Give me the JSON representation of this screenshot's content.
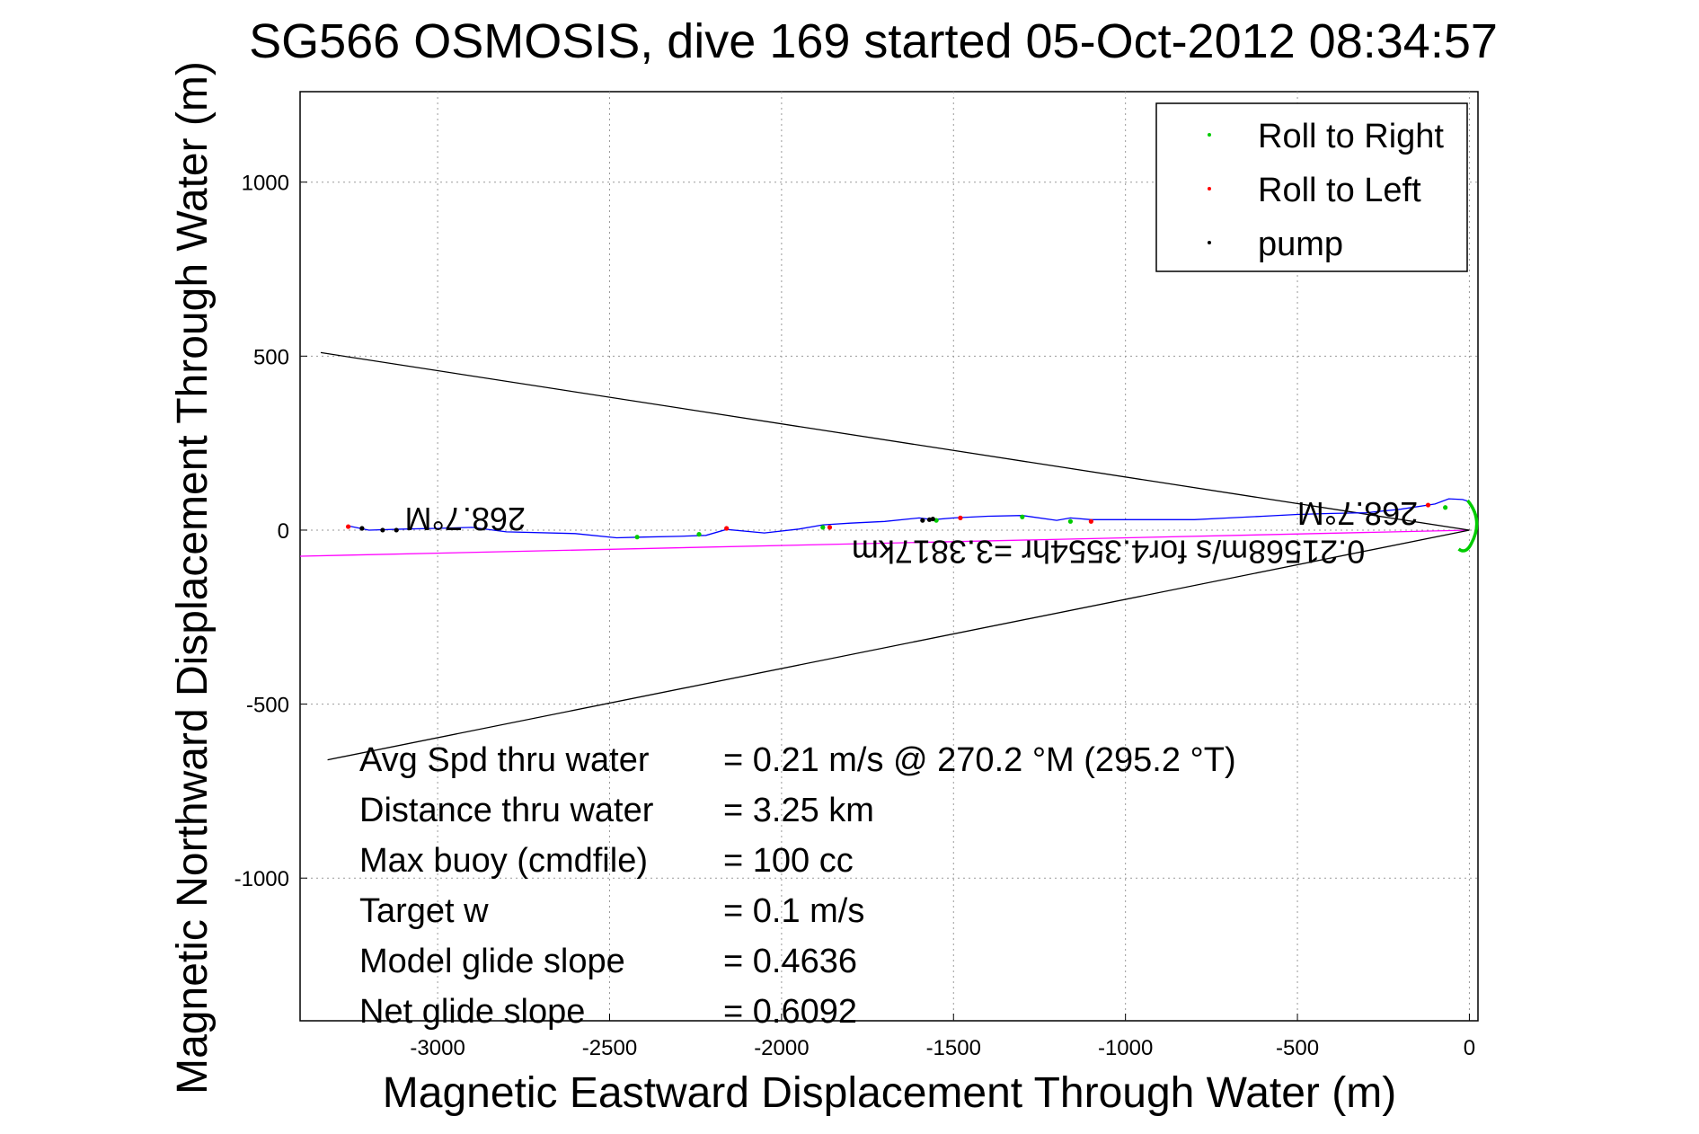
{
  "chart_data": {
    "type": "line",
    "title": "SG566 OSMOSIS, dive 169 started 05-Oct-2012 08:34:57",
    "xlabel": "Magnetic Eastward Displacement Through Water (m)",
    "ylabel": "Magnetic Northward Displacement Through Water (m)",
    "xlim": [
      -3400,
      25
    ],
    "ylim": [
      -1410,
      1260
    ],
    "xticks": [
      -3000,
      -2500,
      -2000,
      -1500,
      -1000,
      -500,
      0
    ],
    "yticks": [
      -1000,
      -500,
      0,
      500,
      1000
    ],
    "xtick_labels": [
      "-3000",
      "-2500",
      "-2000",
      "-1500",
      "-1000",
      "-500",
      "0"
    ],
    "ytick_labels": [
      "-1000",
      "-500",
      "0",
      "500",
      "1000"
    ],
    "grid": true,
    "legend_position": "top-right",
    "legend": [
      {
        "label": "Roll to Right",
        "color": "#00cc00"
      },
      {
        "label": "Roll to Left",
        "color": "#ff0000"
      },
      {
        "label": "pump",
        "color": "#000000"
      }
    ],
    "series": [
      {
        "name": "track",
        "color": "#0000ff",
        "x": [
          0,
          -20,
          -60,
          -100,
          -200,
          -300,
          -400,
          -500,
          -600,
          -700,
          -800,
          -900,
          -1000,
          -1100,
          -1160,
          -1200,
          -1300,
          -1400,
          -1500,
          -1560,
          -1600,
          -1700,
          -1800,
          -1880,
          -1950,
          -2050,
          -2160,
          -2220,
          -2300,
          -2400,
          -2480,
          -2600,
          -2800,
          -2900,
          -3000,
          -3100,
          -3200,
          -3260
        ],
        "y": [
          82,
          88,
          90,
          75,
          60,
          50,
          48,
          45,
          40,
          35,
          30,
          30,
          30,
          30,
          35,
          28,
          42,
          40,
          35,
          30,
          35,
          25,
          20,
          15,
          3,
          -8,
          2,
          -15,
          -18,
          -20,
          -22,
          -10,
          -5,
          8,
          5,
          3,
          0,
          12
        ]
      },
      {
        "name": "roll to right",
        "color": "#00cc00",
        "x": [
          -70,
          -1160,
          -1300,
          -1550,
          -1880,
          -2240,
          -2420
        ],
        "y": [
          65,
          25,
          38,
          28,
          8,
          -12,
          -20
        ]
      },
      {
        "name": "roll to left",
        "color": "#ff0000",
        "x": [
          -120,
          -1100,
          -1480,
          -1860,
          -2160,
          -3260
        ],
        "y": [
          72,
          25,
          35,
          8,
          5,
          10
        ]
      },
      {
        "name": "pump",
        "color": "#000000",
        "x": [
          -1590,
          -1560,
          -1570,
          -3220,
          -3160,
          -3120
        ],
        "y": [
          28,
          32,
          30,
          5,
          0,
          0
        ]
      },
      {
        "name": "depth-averaged current",
        "color": "#ff00ff",
        "x": [
          0,
          -3400
        ],
        "y": [
          0,
          -75
        ]
      },
      {
        "name": "cone upper edge",
        "color": "#000000",
        "x": [
          0,
          -3340
        ],
        "y": [
          0,
          510
        ]
      },
      {
        "name": "cone lower edge",
        "color": "#000000",
        "x": [
          0,
          -3320
        ],
        "y": [
          0,
          -660
        ]
      }
    ],
    "annotations": [
      {
        "text": "268.7°M",
        "x": -2920,
        "y": 40,
        "upside_down": true
      },
      {
        "text": "268.7°M",
        "x": -325,
        "y": 55,
        "upside_down": true
      },
      {
        "text": "0.21568m/s for4.3554hr =3.3817km",
        "x": -1050,
        "y": -55,
        "upside_down": true
      }
    ],
    "stats": [
      {
        "label": "Avg Spd thru water",
        "value": "=  0.21 m/s @ 270.2 °M (295.2 °T)"
      },
      {
        "label": "Distance thru water",
        "value": "=  3.25 km"
      },
      {
        "label": "Max buoy (cmdfile)",
        "value": "= 100 cc"
      },
      {
        "label": "Target w",
        "value": "= 0.1 m/s"
      },
      {
        "label": "Model glide slope",
        "value": "= 0.4636"
      },
      {
        "label": "Net glide slope",
        "value": "= 0.6092"
      }
    ]
  }
}
